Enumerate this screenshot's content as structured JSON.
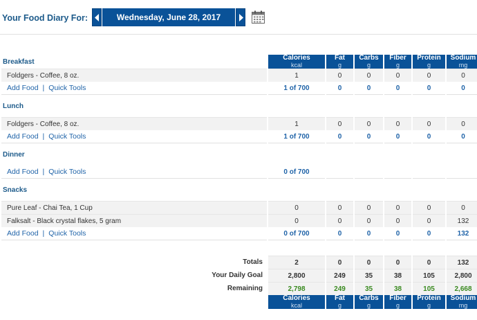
{
  "header": {
    "label": "Your Food Diary For:",
    "date": "Wednesday, June 28, 2017"
  },
  "columns": [
    {
      "name": "Calories",
      "unit": "kcal"
    },
    {
      "name": "Fat",
      "unit": "g"
    },
    {
      "name": "Carbs",
      "unit": "g"
    },
    {
      "name": "Fiber",
      "unit": "g"
    },
    {
      "name": "Protein",
      "unit": "g"
    },
    {
      "name": "Sodium",
      "unit": "mg"
    }
  ],
  "links": {
    "add_food": "Add Food",
    "quick_tools": "Quick Tools",
    "separator": "|"
  },
  "meals": {
    "breakfast": {
      "title": "Breakfast",
      "foods": [
        {
          "name": "Foldgers - Coffee, 8 oz.",
          "values": [
            "1",
            "0",
            "0",
            "0",
            "0",
            "0"
          ]
        }
      ],
      "subtotal": [
        "1 of 700",
        "0",
        "0",
        "0",
        "0",
        "0"
      ]
    },
    "lunch": {
      "title": "Lunch",
      "foods": [
        {
          "name": "Foldgers - Coffee, 8 oz.",
          "values": [
            "1",
            "0",
            "0",
            "0",
            "0",
            "0"
          ]
        }
      ],
      "subtotal": [
        "1 of 700",
        "0",
        "0",
        "0",
        "0",
        "0"
      ]
    },
    "dinner": {
      "title": "Dinner",
      "foods": [],
      "subtotal": [
        "0 of 700",
        "",
        "",
        "",
        "",
        ""
      ]
    },
    "snacks": {
      "title": "Snacks",
      "foods": [
        {
          "name": "Pure Leaf - Chai Tea, 1 Cup",
          "values": [
            "0",
            "0",
            "0",
            "0",
            "0",
            "0"
          ]
        },
        {
          "name": "Falksalt - Black crystal flakes, 5 gram",
          "values": [
            "0",
            "0",
            "0",
            "0",
            "0",
            "132"
          ]
        }
      ],
      "subtotal": [
        "0 of 700",
        "0",
        "0",
        "0",
        "0",
        "132"
      ]
    }
  },
  "totals": {
    "label": "Totals",
    "values": [
      "2",
      "0",
      "0",
      "0",
      "0",
      "132"
    ]
  },
  "goal": {
    "label": "Your Daily Goal",
    "values": [
      "2,800",
      "249",
      "35",
      "38",
      "105",
      "2,800"
    ]
  },
  "remaining": {
    "label": "Remaining",
    "values": [
      "2,798",
      "249",
      "35",
      "38",
      "105",
      "2,668"
    ]
  },
  "colors": {
    "brand_blue": "#0a5298",
    "link_blue": "#1f63a8",
    "title_blue": "#1c5a8a",
    "remaining_green": "#3a8a20"
  }
}
